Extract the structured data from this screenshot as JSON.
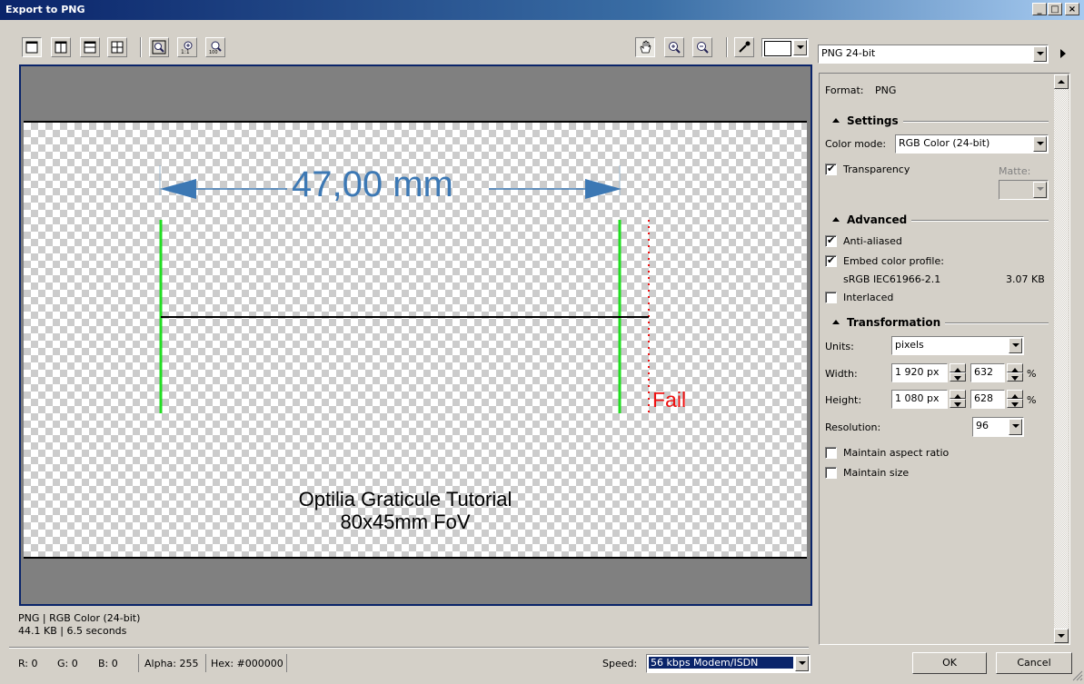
{
  "window": {
    "title": "Export to PNG"
  },
  "toolbar": {
    "format_select": "PNG 24-bit"
  },
  "preview": {
    "measurement": "47,00 mm",
    "fail_label": "Fail",
    "caption_line1": "Optilia Graticule Tutorial",
    "caption_line2": "80x45mm FoV",
    "info_line1": "PNG  |  RGB Color (24-bit)",
    "info_line2": "44.1 KB  |  6.5 seconds"
  },
  "panel": {
    "format_label": "Format:",
    "format_value": "PNG",
    "settings": {
      "title": "Settings",
      "color_mode_label": "Color mode:",
      "color_mode_value": "RGB Color (24-bit)",
      "transparency_label": "Transparency",
      "transparency_checked": true,
      "matte_label": "Matte:"
    },
    "advanced": {
      "title": "Advanced",
      "anti_aliased_label": "Anti-aliased",
      "anti_aliased_checked": true,
      "embed_profile_label": "Embed color profile:",
      "embed_profile_checked": true,
      "profile_name": "sRGB IEC61966-2.1",
      "profile_size": "3.07 KB",
      "interlaced_label": "Interlaced",
      "interlaced_checked": false
    },
    "transformation": {
      "title": "Transformation",
      "units_label": "Units:",
      "units_value": "pixels",
      "width_label": "Width:",
      "width_value": "1 920 px",
      "width_percent": "632",
      "height_label": "Height:",
      "height_value": "1 080 px",
      "height_percent": "628",
      "percent_sign": "%",
      "resolution_label": "Resolution:",
      "resolution_value": "96",
      "aspect_label": "Maintain aspect ratio",
      "aspect_checked": false,
      "size_label": "Maintain size",
      "size_checked": false
    }
  },
  "statusbar": {
    "r": "R: 0",
    "g": "G: 0",
    "b": "B: 0",
    "alpha": "Alpha: 255",
    "hex": "Hex: #000000",
    "speed_label": "Speed:",
    "speed_value": "56 kbps Modem/ISDN"
  },
  "buttons": {
    "ok": "OK",
    "cancel": "Cancel"
  },
  "colors": {
    "title_start": "#0a246a",
    "accent": "#3c78b4",
    "green": "#22dd22",
    "red": "#ee1111"
  }
}
